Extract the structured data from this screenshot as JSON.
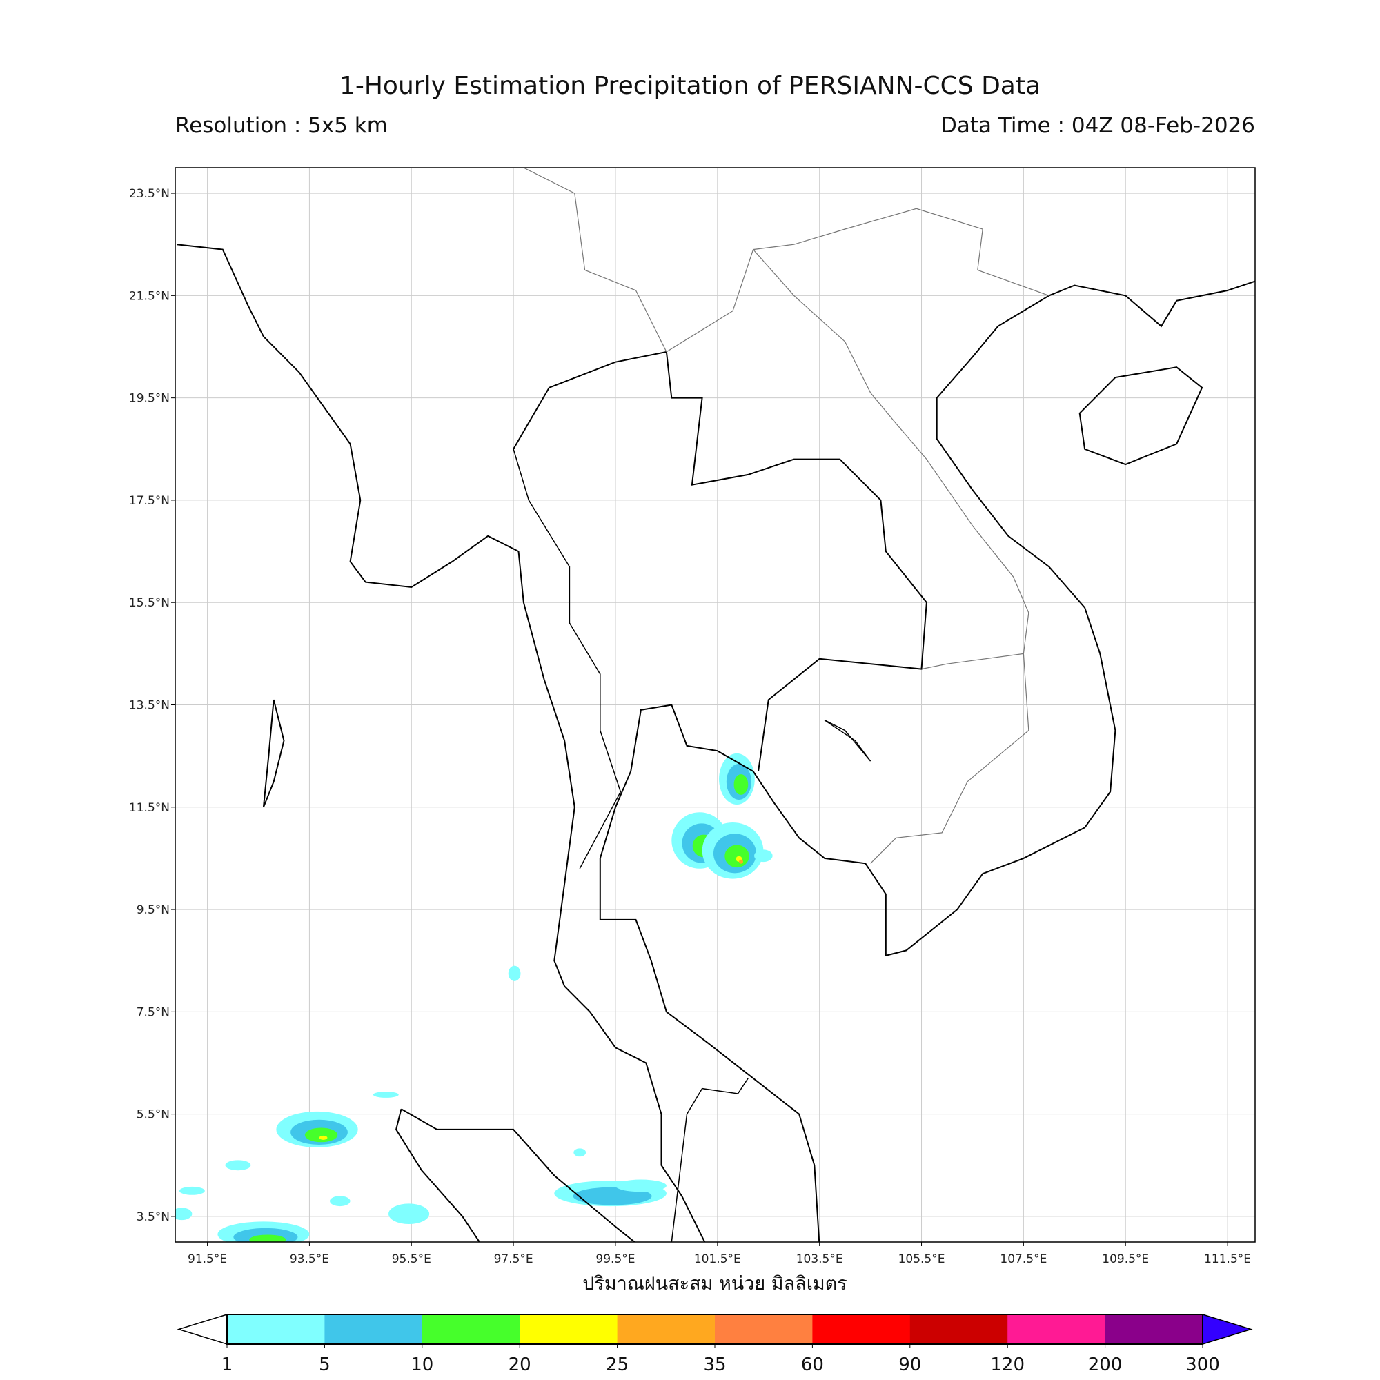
{
  "header": {
    "title": "1-Hourly Estimation Precipitation of PERSIANN-CCS Data",
    "resolution": "Resolution : 5x5 km",
    "data_time": "Data Time : 04Z 08-Feb-2026"
  },
  "map": {
    "lon_range": [
      90.87,
      112.04
    ],
    "lat_range": [
      3.0,
      24.0
    ],
    "grid": true,
    "lon_ticks": [
      "91.5°E",
      "93.5°E",
      "95.5°E",
      "97.5°E",
      "99.5°E",
      "101.5°E",
      "103.5°E",
      "105.5°E",
      "107.5°E",
      "109.5°E",
      "111.5°E"
    ],
    "lon_tick_values": [
      91.5,
      93.5,
      95.5,
      97.5,
      99.5,
      101.5,
      103.5,
      105.5,
      107.5,
      109.5,
      111.5
    ],
    "lat_ticks": [
      "23.5°N",
      "21.5°N",
      "19.5°N",
      "17.5°N",
      "15.5°N",
      "13.5°N",
      "11.5°N",
      "9.5°N",
      "7.5°N",
      "5.5°N",
      "3.5°N"
    ],
    "lat_tick_values": [
      23.5,
      21.5,
      19.5,
      17.5,
      15.5,
      13.5,
      11.5,
      9.5,
      7.5,
      5.5,
      3.5
    ],
    "rain_cells": [
      {
        "lon": 101.88,
        "lat": 12.05,
        "rx": 0.35,
        "ry": 0.5,
        "max_level": 2
      },
      {
        "lon": 101.15,
        "lat": 10.85,
        "rx": 0.55,
        "ry": 0.55,
        "max_level": 4
      },
      {
        "lon": 101.8,
        "lat": 10.65,
        "rx": 0.6,
        "ry": 0.55,
        "max_level": 4
      },
      {
        "lon": 102.4,
        "lat": 10.55,
        "rx": 0.18,
        "ry": 0.12,
        "max_level": 0
      },
      {
        "lon": 93.65,
        "lat": 5.2,
        "rx": 0.8,
        "ry": 0.35,
        "max_level": 3
      },
      {
        "lon": 92.6,
        "lat": 3.15,
        "rx": 0.9,
        "ry": 0.25,
        "max_level": 2
      },
      {
        "lon": 95.45,
        "lat": 3.55,
        "rx": 0.4,
        "ry": 0.2,
        "max_level": 0
      },
      {
        "lon": 99.4,
        "lat": 3.95,
        "rx": 1.1,
        "ry": 0.25,
        "max_level": 1
      },
      {
        "lon": 100.0,
        "lat": 4.1,
        "rx": 0.5,
        "ry": 0.12,
        "max_level": 0
      },
      {
        "lon": 97.52,
        "lat": 8.25,
        "rx": 0.12,
        "ry": 0.15,
        "max_level": 0
      },
      {
        "lon": 95.0,
        "lat": 5.88,
        "rx": 0.25,
        "ry": 0.06,
        "max_level": 0
      },
      {
        "lon": 92.1,
        "lat": 4.5,
        "rx": 0.25,
        "ry": 0.1,
        "max_level": 0
      },
      {
        "lon": 91.2,
        "lat": 4.0,
        "rx": 0.25,
        "ry": 0.08,
        "max_level": 0
      },
      {
        "lon": 91.0,
        "lat": 3.55,
        "rx": 0.2,
        "ry": 0.12,
        "max_level": 0
      },
      {
        "lon": 98.8,
        "lat": 4.75,
        "rx": 0.12,
        "ry": 0.08,
        "max_level": 0
      },
      {
        "lon": 94.1,
        "lat": 3.8,
        "rx": 0.2,
        "ry": 0.1,
        "max_level": 0
      }
    ]
  },
  "colorbar": {
    "label": "ปริมาณฝนสะสม หน่วย มิลลิเมตร",
    "ticks": [
      "1",
      "5",
      "10",
      "20",
      "25",
      "35",
      "60",
      "90",
      "120",
      "200",
      "300"
    ],
    "colors": [
      "#80ffff",
      "#40c6ea",
      "#46ff2b",
      "#ffff00",
      "#ffa81f",
      "#ff8040",
      "#ff0000",
      "#cc0000",
      "#ff1a94",
      "#8a008a"
    ],
    "under_color": "#ffffff",
    "over_color": "#3300ff"
  }
}
